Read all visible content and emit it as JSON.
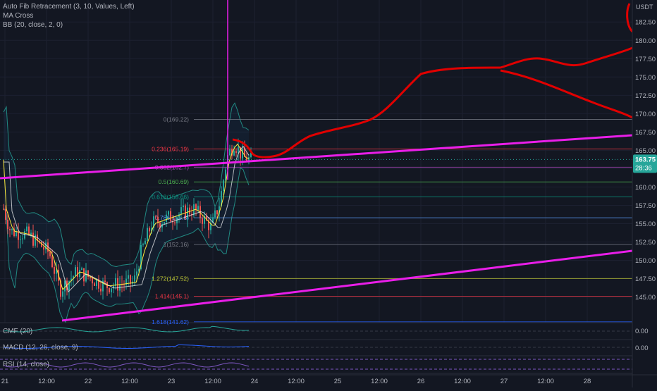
{
  "legend": {
    "fib": "Auto Fib Retracement (3, 10, Values, Left)",
    "ma": "MA Cross",
    "bb": "BB (20, close, 2, 0)"
  },
  "currency": "USDT",
  "price": {
    "current": "163.75",
    "countdown": "28:36"
  },
  "indicators": {
    "cmf": {
      "label": "CMF (20)",
      "value": "0.00"
    },
    "macd": {
      "label": "MACD (12, 26, close, 9)",
      "value": "0.00"
    },
    "rsi": {
      "label": "RSI (14, close)"
    }
  },
  "colors": {
    "background": "#131722",
    "up": "#26a69a",
    "down": "#ef5350",
    "trendline": "#e91ee9",
    "drawing": "#e00000",
    "price_badge": "#26a69a"
  },
  "chart_data": {
    "type": "candlestick",
    "ylim": [
      141.5,
      185.5
    ],
    "yticks": [
      "182.50",
      "180.00",
      "177.50",
      "175.00",
      "172.50",
      "170.00",
      "167.50",
      "165.00",
      "162.50",
      "160.00",
      "157.50",
      "155.00",
      "152.50",
      "150.00",
      "147.50",
      "145.00"
    ],
    "xticks": [
      "21",
      "12:00",
      "22",
      "12:00",
      "23",
      "12:00",
      "24",
      "12:00",
      "25",
      "12:00",
      "26",
      "12:00",
      "27",
      "12:00",
      "28"
    ],
    "fib_levels": [
      {
        "label": "0(169.22)",
        "value": 169.22,
        "color": "#787b86"
      },
      {
        "label": "0.236(165.19)",
        "value": 165.19,
        "color": "#f23645"
      },
      {
        "label": "0.382(162.7)",
        "value": 162.7,
        "color": "#ab47bc"
      },
      {
        "label": "0.5(160.69)",
        "value": 160.69,
        "color": "#4caf50"
      },
      {
        "label": "0.618(158.66)",
        "value": 158.66,
        "color": "#089981"
      },
      {
        "label": "0.786(155.8)",
        "value": 155.8,
        "color": "#5b9cf6"
      },
      {
        "label": "1(152.16)",
        "value": 152.16,
        "color": "#787b86"
      },
      {
        "label": "1.272(147.52)",
        "value": 147.52,
        "color": "#c0ca33"
      },
      {
        "label": "1.414(145.1)",
        "value": 145.1,
        "color": "#f23645"
      },
      {
        "label": "1.618(141.62)",
        "value": 141.62,
        "color": "#2962ff"
      }
    ]
  }
}
